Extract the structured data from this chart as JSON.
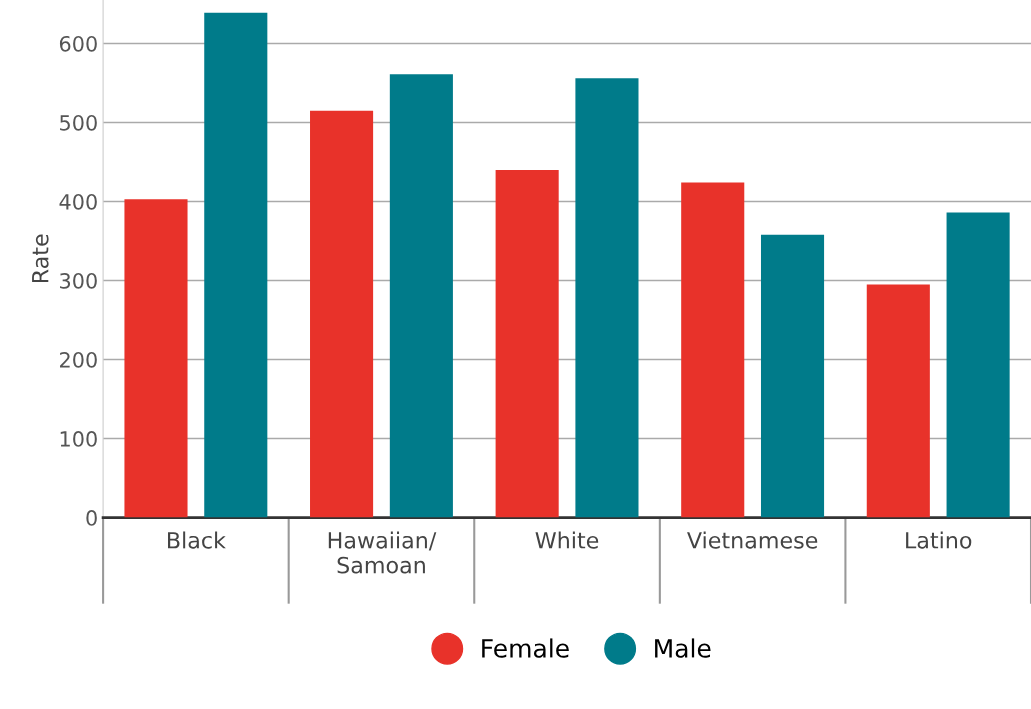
{
  "chart_data": {
    "type": "bar",
    "ylabel": "Rate",
    "categories": [
      "Black",
      "Hawaiian/\nSamoan",
      "White",
      "Vietnamese",
      "Latino"
    ],
    "series": [
      {
        "name": "Female",
        "color": "#e8322a",
        "values": [
          403,
          515,
          440,
          424,
          295
        ]
      },
      {
        "name": "Male",
        "color": "#007b8a",
        "values": [
          639,
          561,
          556,
          358,
          386
        ]
      }
    ],
    "ylim": [
      0,
      655
    ],
    "yticks": [
      0,
      100,
      200,
      300,
      400,
      500,
      600
    ],
    "grid": "y",
    "legend": "bottom"
  }
}
